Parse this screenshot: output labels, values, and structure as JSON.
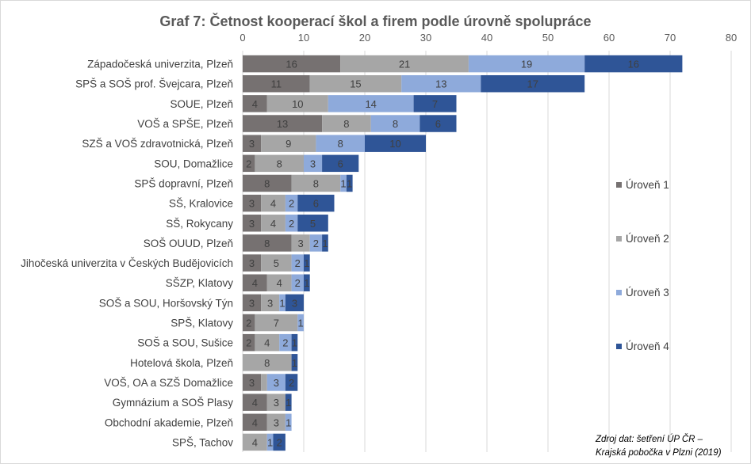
{
  "chart_data": {
    "type": "bar",
    "orientation": "horizontal",
    "stacked": true,
    "title": "Graf 7: Četnost kooperací škol a firem podle úrovně spolupráce",
    "xlim": [
      0,
      80
    ],
    "xticks": [
      0,
      10,
      20,
      30,
      40,
      50,
      60,
      70,
      80
    ],
    "xaxis_position": "top",
    "grid": "vertical",
    "legend_position": "right",
    "categories": [
      "Západočeská univerzita, Plzeň",
      "SPŠ a SOŠ prof. Švejcara, Plzeň",
      "SOUE, Plzeň",
      "VOŠ a SPŠE, Plzeň",
      "SZŠ a VOŠ zdravotnická, Plzeň",
      "SOU, Domažlice",
      "SPŠ dopravní, Plzeň",
      "SŠ, Kralovice",
      "SŠ, Rokycany",
      "SOŠ OUUD, Plzeň",
      "Jihočeská univerzita v Českých Budějovicích",
      "SŠZP, Klatovy",
      "SOŠ a SOU, Horšovský Týn",
      "SPŠ, Klatovy",
      "SOŠ a SOU, Sušice",
      "Hotelová škola, Plzeň",
      "VOŠ, OA a SZŠ Domažlice",
      "Gymnázium a SOŠ Plasy",
      "Obchodní akademie, Plzeň",
      "SPŠ, Tachov"
    ],
    "series": [
      {
        "name": "Úroveň 1",
        "color": "#767171",
        "label_color": "#404040",
        "values": [
          16,
          11,
          4,
          13,
          3,
          2,
          8,
          3,
          3,
          8,
          3,
          4,
          3,
          2,
          2,
          0,
          3,
          4,
          4,
          0
        ]
      },
      {
        "name": "Úroveň 2",
        "color": "#a6a6a6",
        "label_color": "#404040",
        "values": [
          21,
          15,
          10,
          8,
          9,
          8,
          8,
          4,
          4,
          3,
          5,
          4,
          3,
          7,
          4,
          8,
          1,
          3,
          3,
          4
        ]
      },
      {
        "name": "Úroveň 3",
        "color": "#8eaadb",
        "label_color": "#404040",
        "values": [
          19,
          13,
          14,
          8,
          8,
          3,
          1,
          2,
          2,
          2,
          2,
          2,
          1,
          1,
          2,
          0,
          3,
          0,
          1,
          1
        ]
      },
      {
        "name": "Úroveň 4",
        "color": "#2f5597",
        "label_color": "#404040",
        "values": [
          16,
          17,
          7,
          6,
          10,
          6,
          1,
          6,
          5,
          1,
          1,
          1,
          3,
          0,
          1,
          1,
          2,
          1,
          0,
          2
        ]
      }
    ],
    "hidden_labels": [
      [
        15,
        0
      ],
      [
        16,
        1
      ],
      [
        15,
        2
      ],
      [
        19,
        0
      ]
    ]
  },
  "source_note_line1": "Zdroj dat: šetření ÚP ČR –",
  "source_note_line2": "Krajská pobočka v Plzni (2019)"
}
